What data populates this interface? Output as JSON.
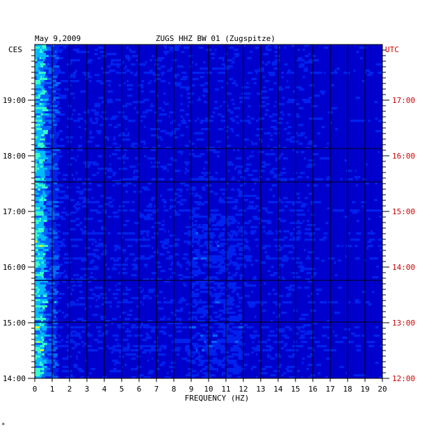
{
  "chart_data": {
    "type": "heatmap",
    "title": "ZUGS HHZ BW 01 (Zugspitze)",
    "date": "May 9,2009",
    "left_axis_label": "CES",
    "right_axis_label": "UTC",
    "xlabel": "FREQUENCY (HZ)",
    "xlim": [
      0,
      20
    ],
    "x_ticks": [
      "0",
      "1",
      "2",
      "3",
      "4",
      "5",
      "6",
      "7",
      "8",
      "9",
      "10",
      "11",
      "12",
      "13",
      "14",
      "15",
      "16",
      "17",
      "18",
      "19",
      "20"
    ],
    "y_ticks_local": [
      "19:00",
      "18:00",
      "17:00",
      "16:00",
      "15:00",
      "14:00"
    ],
    "y_ticks_utc": [
      "17:00",
      "16:00",
      "15:00",
      "14:00",
      "13:00",
      "12:00"
    ],
    "colors": {
      "background": "#0000cc",
      "grid": "#000000",
      "utc_text": "#cc0000",
      "scale": [
        "#0000aa",
        "#0022ee",
        "#0066ff",
        "#00bbff",
        "#33ffcc",
        "#ccff33",
        "#ff9900",
        "#dd0000"
      ]
    }
  },
  "footer_mark": "*"
}
